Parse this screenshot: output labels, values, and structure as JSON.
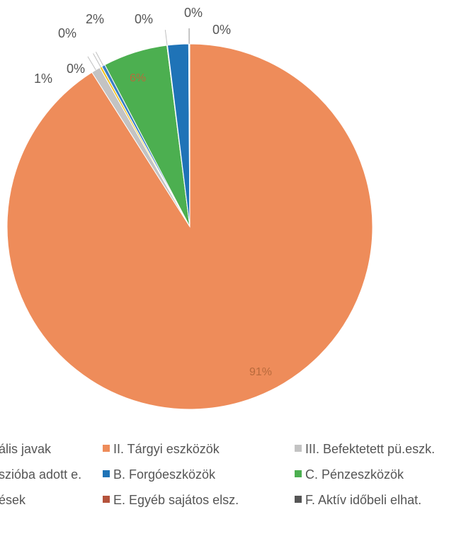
{
  "chart_data": {
    "type": "pie",
    "slices": [
      {
        "name": "II. Tárgyi eszközök",
        "value": 91,
        "label": "91%",
        "color": "#ee8c5a"
      },
      {
        "name": "III. Befektetett pü.eszk.",
        "value": 0.8,
        "label": "1%",
        "color": "#c3c3c3"
      },
      {
        "name": "Koncesszióba adott e.",
        "value": 0.2,
        "label": "0%",
        "color": "#f2c21e"
      },
      {
        "name": "B. Forgóeszközök",
        "value": 0.3,
        "label": "0%",
        "color": "#3b7fc4"
      },
      {
        "name": "C. Pénzeszközök",
        "value": 5.7,
        "label": "6%",
        "color": "#4caf50"
      },
      {
        "name": "D. Követelések",
        "value": 0.05,
        "label": "0%",
        "color": "#2a4d8f"
      },
      {
        "name": "E. Egyéb sajátos elsz.",
        "value": 1.85,
        "label": "2%",
        "color": "#1f73b7"
      },
      {
        "name": "F. Aktív időbeli elhat.",
        "value": 0.05,
        "label": "0%",
        "color": "#555555"
      },
      {
        "name": "I. Immateriális javak",
        "value": 0.05,
        "label": "0%",
        "color": "#a5a5a5"
      }
    ]
  },
  "legend": [
    {
      "text": "ális javak",
      "color": "#a5a5a5"
    },
    {
      "text": "II. Tárgyi eszközök",
      "color": "#ee8c5a"
    },
    {
      "text": "III. Befektetett pü.eszk.",
      "color": "#c3c3c3"
    },
    {
      "text": "szióba adott e.",
      "color": "#f2c21e"
    },
    {
      "text": "B. Forgóeszközök",
      "color": "#1f73b7"
    },
    {
      "text": "C. Pénzeszközök",
      "color": "#4caf50"
    },
    {
      "text": "ések",
      "color": "#2a4d8f"
    },
    {
      "text": "E. Egyéb sajátos elsz.",
      "color": "#b5533c"
    },
    {
      "text": "F. Aktív időbeli elhat.",
      "color": "#555555"
    }
  ]
}
